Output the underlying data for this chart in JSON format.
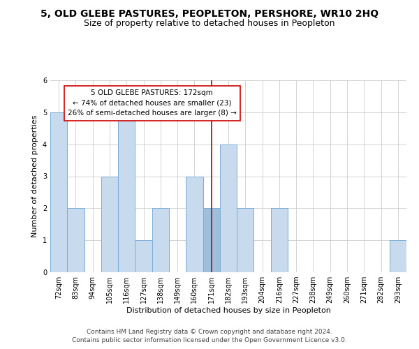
{
  "title": "5, OLD GLEBE PASTURES, PEOPLETON, PERSHORE, WR10 2HQ",
  "subtitle": "Size of property relative to detached houses in Peopleton",
  "xlabel": "Distribution of detached houses by size in Peopleton",
  "ylabel": "Number of detached properties",
  "bar_labels": [
    "72sqm",
    "83sqm",
    "94sqm",
    "105sqm",
    "116sqm",
    "127sqm",
    "138sqm",
    "149sqm",
    "160sqm",
    "171sqm",
    "182sqm",
    "193sqm",
    "204sqm",
    "216sqm",
    "227sqm",
    "238sqm",
    "249sqm",
    "260sqm",
    "271sqm",
    "282sqm",
    "293sqm"
  ],
  "bar_values": [
    5,
    2,
    0,
    3,
    5,
    1,
    2,
    0,
    3,
    2,
    4,
    2,
    0,
    2,
    0,
    0,
    0,
    0,
    0,
    0,
    1
  ],
  "highlight_index": 9,
  "bar_color": "#c8daed",
  "highlight_bar_color": "#9dbfdb",
  "bar_edge_color": "#7badd4",
  "highlight_line_color": "#cc0000",
  "annotation_title": "5 OLD GLEBE PASTURES: 172sqm",
  "annotation_line1": "← 74% of detached houses are smaller (23)",
  "annotation_line2": "26% of semi-detached houses are larger (8) →",
  "annotation_box_color": "#ffffff",
  "annotation_box_edge_color": "#cc0000",
  "ylim": [
    0,
    6
  ],
  "yticks": [
    0,
    1,
    2,
    3,
    4,
    5,
    6
  ],
  "footer1": "Contains HM Land Registry data © Crown copyright and database right 2024.",
  "footer2": "Contains public sector information licensed under the Open Government Licence v3.0.",
  "background_color": "#ffffff",
  "grid_color": "#cccccc",
  "title_fontsize": 10,
  "subtitle_fontsize": 9,
  "axis_fontsize": 8,
  "tick_fontsize": 7,
  "annot_fontsize": 7.5,
  "footer_fontsize": 6.5
}
